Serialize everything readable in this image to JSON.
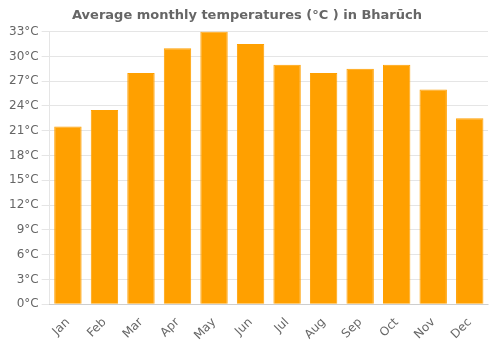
{
  "chart_data": {
    "type": "bar",
    "title": "Average monthly temperatures (°C ) in Bharūch",
    "categories": [
      "Jan",
      "Feb",
      "Mar",
      "Apr",
      "May",
      "Jun",
      "Jul",
      "Aug",
      "Sep",
      "Oct",
      "Nov",
      "Dec"
    ],
    "values": [
      21.5,
      23.5,
      28.0,
      31.0,
      33.0,
      31.5,
      29.0,
      28.0,
      28.5,
      29.0,
      26.0,
      22.5
    ],
    "color": "#FFA000",
    "ylim": [
      0,
      33
    ],
    "yticks": [
      {
        "value": 0,
        "label": "0°C"
      },
      {
        "value": 3,
        "label": "3°C"
      },
      {
        "value": 6,
        "label": "6°C"
      },
      {
        "value": 9,
        "label": "9°C"
      },
      {
        "value": 12,
        "label": "12°C"
      },
      {
        "value": 15,
        "label": "15°C"
      },
      {
        "value": 18,
        "label": "18°C"
      },
      {
        "value": 21,
        "label": "21°C"
      },
      {
        "value": 24,
        "label": "24°C"
      },
      {
        "value": 27,
        "label": "27°C"
      },
      {
        "value": 30,
        "label": "30°C"
      },
      {
        "value": 33,
        "label": "33°C"
      }
    ],
    "grid": true
  }
}
